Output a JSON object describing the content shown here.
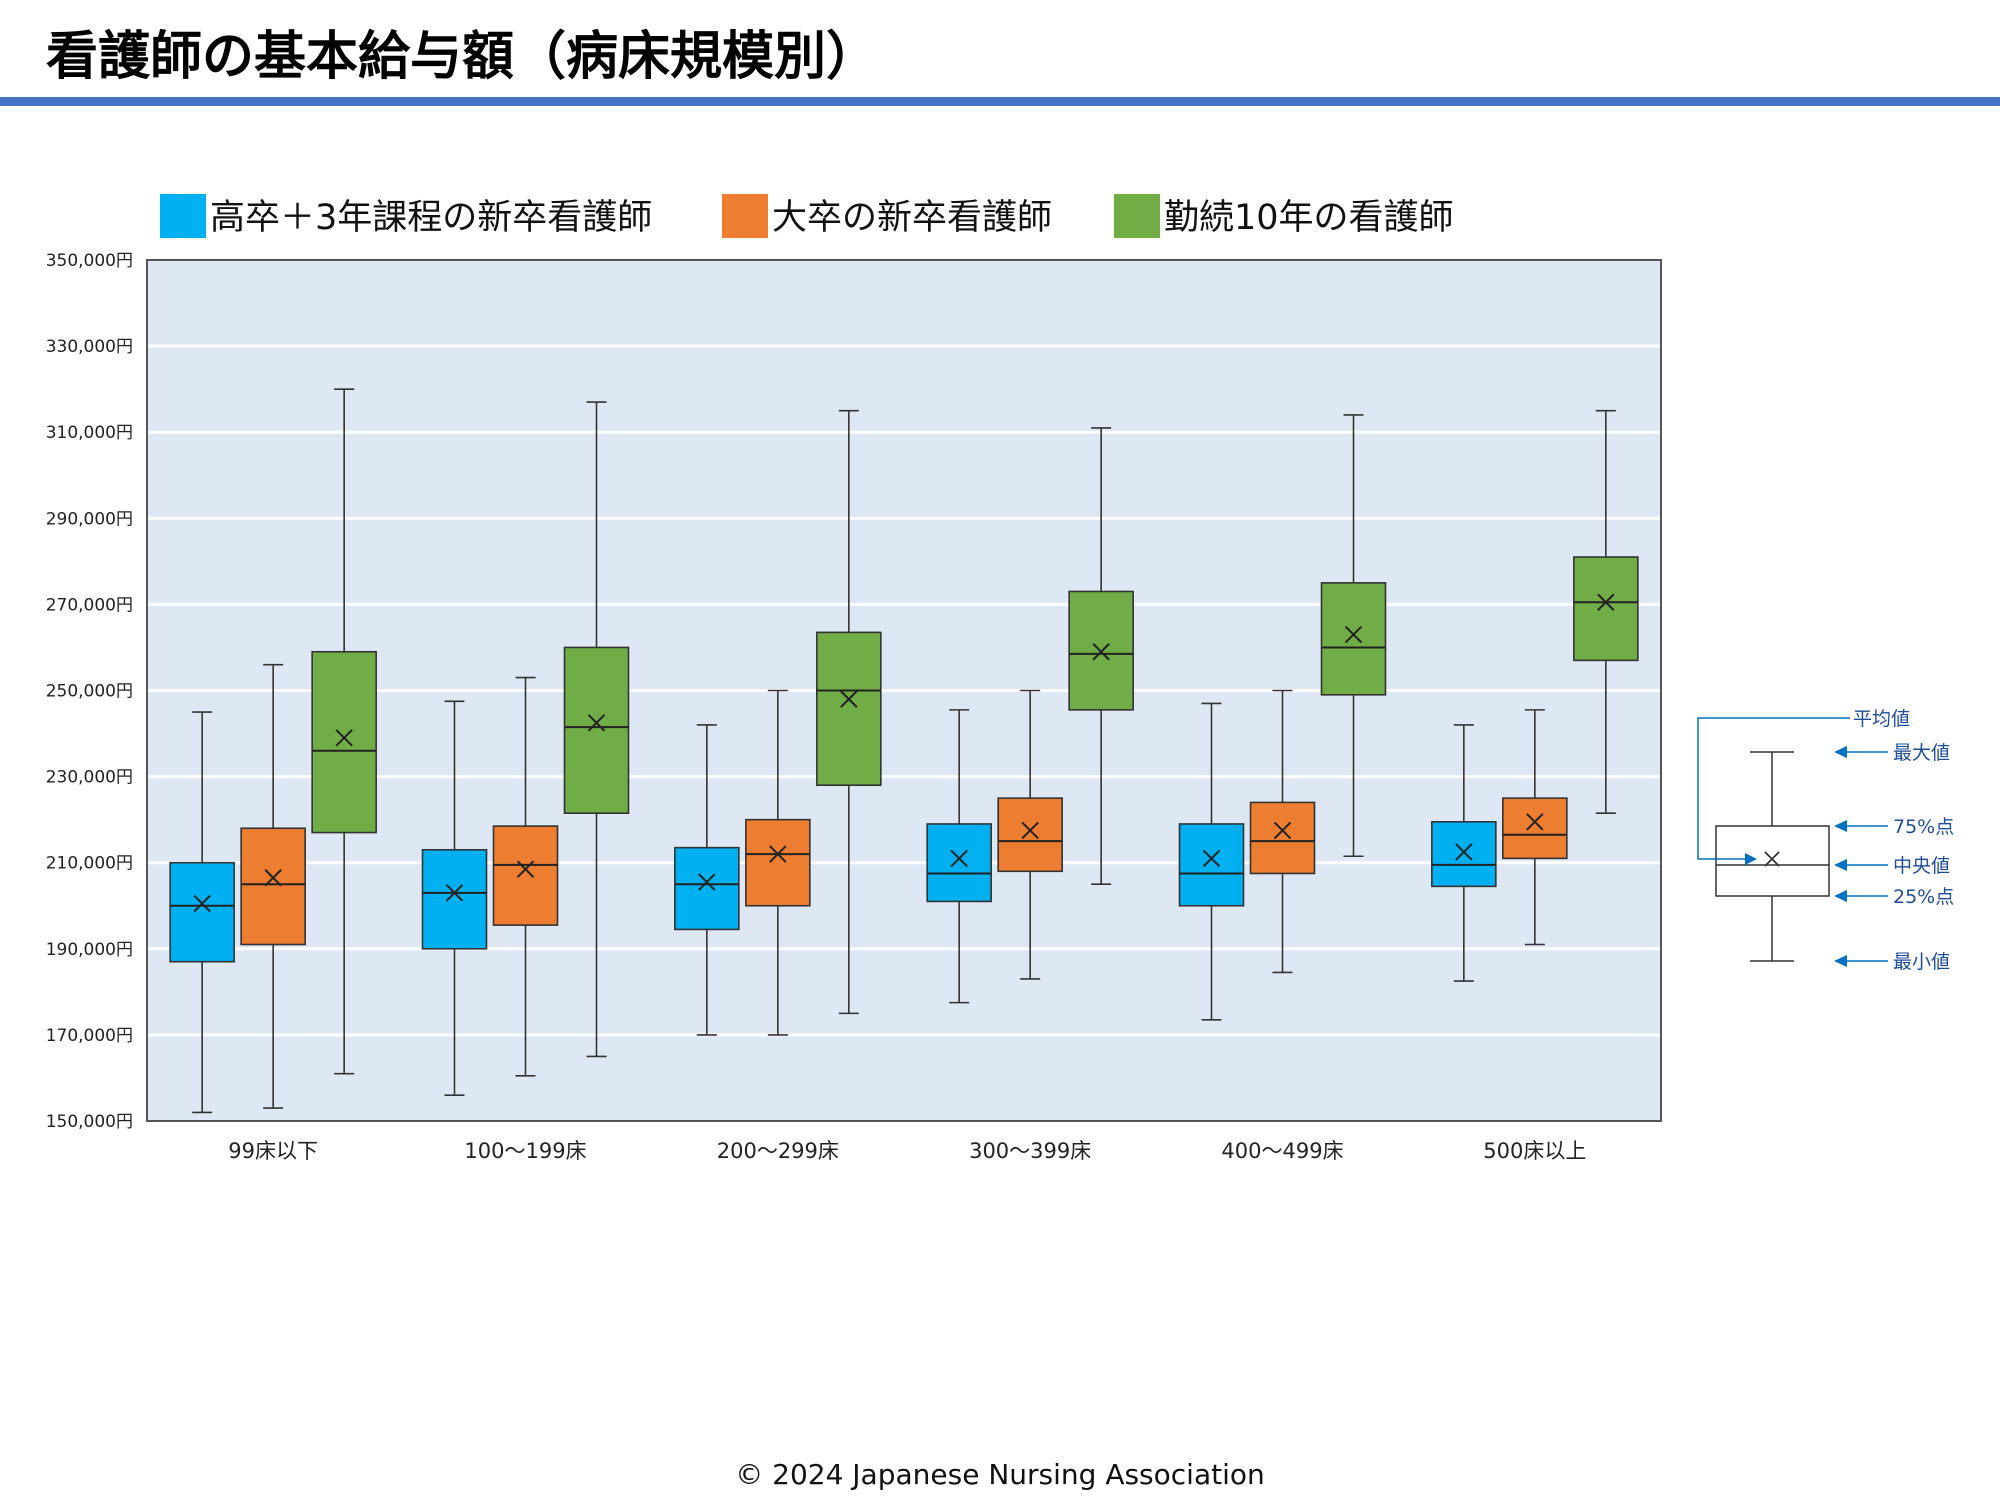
{
  "title": "看護師の基本給与額（病床規模別）",
  "copyright": "© 2024 Japanese Nursing Association",
  "chart_data": {
    "type": "boxplot",
    "title": "",
    "xlabel": "",
    "ylabel": "",
    "ylim": [
      150000,
      350000
    ],
    "y_ticks": [
      150000,
      170000,
      190000,
      210000,
      230000,
      250000,
      270000,
      290000,
      310000,
      330000,
      350000
    ],
    "y_tick_labels": [
      "150,000円",
      "170,000円",
      "190,000円",
      "210,000円",
      "230,000円",
      "250,000円",
      "270,000円",
      "290,000円",
      "310,000円",
      "330,000円",
      "350,000円"
    ],
    "grid": true,
    "legend_position": "top",
    "plot_background": "#DEE8F5",
    "categories": [
      "99床以下",
      "100～199床",
      "200～299床",
      "300～399床",
      "400～499床",
      "500床以上"
    ],
    "series": [
      {
        "name": "高卒＋3年課程の新卒看護師",
        "color": "#00B0F0",
        "boxes": [
          {
            "min": 152000,
            "q1": 187000,
            "median": 200000,
            "q3": 210000,
            "max": 245000,
            "mean": 200500
          },
          {
            "min": 156000,
            "q1": 190000,
            "median": 203000,
            "q3": 213000,
            "max": 247500,
            "mean": 203000
          },
          {
            "min": 170000,
            "q1": 194500,
            "median": 205000,
            "q3": 213500,
            "max": 242000,
            "mean": 205500
          },
          {
            "min": 177500,
            "q1": 201000,
            "median": 207500,
            "q3": 219000,
            "max": 245500,
            "mean": 211000
          },
          {
            "min": 173500,
            "q1": 200000,
            "median": 207500,
            "q3": 219000,
            "max": 247000,
            "mean": 211000
          },
          {
            "min": 182500,
            "q1": 204500,
            "median": 209500,
            "q3": 219500,
            "max": 242000,
            "mean": 212500
          }
        ]
      },
      {
        "name": "大卒の新卒看護師",
        "color": "#ED7D31",
        "boxes": [
          {
            "min": 153000,
            "q1": 191000,
            "median": 205000,
            "q3": 218000,
            "max": 256000,
            "mean": 206500
          },
          {
            "min": 160500,
            "q1": 195500,
            "median": 209500,
            "q3": 218500,
            "max": 253000,
            "mean": 208500
          },
          {
            "min": 170000,
            "q1": 200000,
            "median": 212000,
            "q3": 220000,
            "max": 250000,
            "mean": 212000
          },
          {
            "min": 183000,
            "q1": 208000,
            "median": 215000,
            "q3": 225000,
            "max": 250000,
            "mean": 217500
          },
          {
            "min": 184500,
            "q1": 207500,
            "median": 215000,
            "q3": 224000,
            "max": 250000,
            "mean": 217500
          },
          {
            "min": 191000,
            "q1": 211000,
            "median": 216500,
            "q3": 225000,
            "max": 245500,
            "mean": 219500
          }
        ]
      },
      {
        "name": "勤続10年の看護師",
        "color": "#70AD47",
        "boxes": [
          {
            "min": 161000,
            "q1": 217000,
            "median": 236000,
            "q3": 259000,
            "max": 320000,
            "mean": 239000
          },
          {
            "min": 165000,
            "q1": 221500,
            "median": 241500,
            "q3": 260000,
            "max": 317000,
            "mean": 242500
          },
          {
            "min": 175000,
            "q1": 228000,
            "median": 250000,
            "q3": 263500,
            "max": 315000,
            "mean": 248000
          },
          {
            "min": 205000,
            "q1": 245500,
            "median": 258500,
            "q3": 273000,
            "max": 311000,
            "mean": 259000
          },
          {
            "min": 211500,
            "q1": 249000,
            "median": 260000,
            "q3": 275000,
            "max": 314000,
            "mean": 263000
          },
          {
            "min": 221500,
            "q1": 257000,
            "median": 270500,
            "q3": 281000,
            "max": 315000,
            "mean": 270500
          }
        ]
      }
    ],
    "key": {
      "labels": {
        "mean": "平均値",
        "max": "最大値",
        "q3": "75%点",
        "median": "中央値",
        "q1": "25%点",
        "min": "最小値"
      },
      "color": "#0070C0"
    }
  }
}
